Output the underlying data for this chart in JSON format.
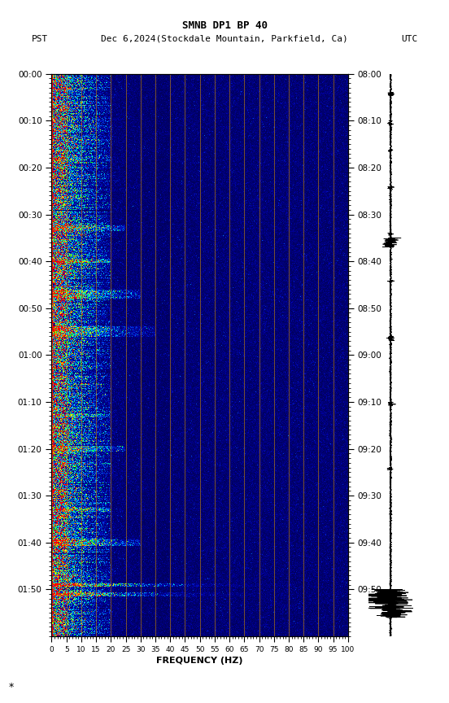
{
  "title_line1": "SMNB DP1 BP 40",
  "title_line2": "PST   Dec 6,2024(Stockdale Mountain, Parkfield, Ca)      UTC",
  "xlabel": "FREQUENCY (HZ)",
  "freq_ticks": [
    0,
    5,
    10,
    15,
    20,
    25,
    30,
    35,
    40,
    45,
    50,
    55,
    60,
    65,
    70,
    75,
    80,
    85,
    90,
    95,
    100
  ],
  "freq_gridlines": [
    5,
    10,
    15,
    20,
    25,
    30,
    35,
    40,
    45,
    50,
    55,
    60,
    65,
    70,
    75,
    80,
    85,
    90,
    95
  ],
  "time_ticks_left": [
    "00:00",
    "00:10",
    "00:20",
    "00:30",
    "00:40",
    "00:50",
    "01:00",
    "01:10",
    "01:20",
    "01:30",
    "01:40",
    "01:50"
  ],
  "time_ticks_right": [
    "08:00",
    "08:10",
    "08:20",
    "08:30",
    "08:40",
    "08:50",
    "09:00",
    "09:10",
    "09:20",
    "09:30",
    "09:40",
    "09:50"
  ],
  "time_tick_positions": [
    0,
    10,
    20,
    30,
    40,
    50,
    60,
    70,
    80,
    90,
    100,
    110
  ],
  "freq_min": 0,
  "freq_max": 100,
  "time_min": 0,
  "time_max": 120,
  "gridline_color": "#CC8800",
  "gridline_alpha": 0.6,
  "bg_color": "#ffffff"
}
